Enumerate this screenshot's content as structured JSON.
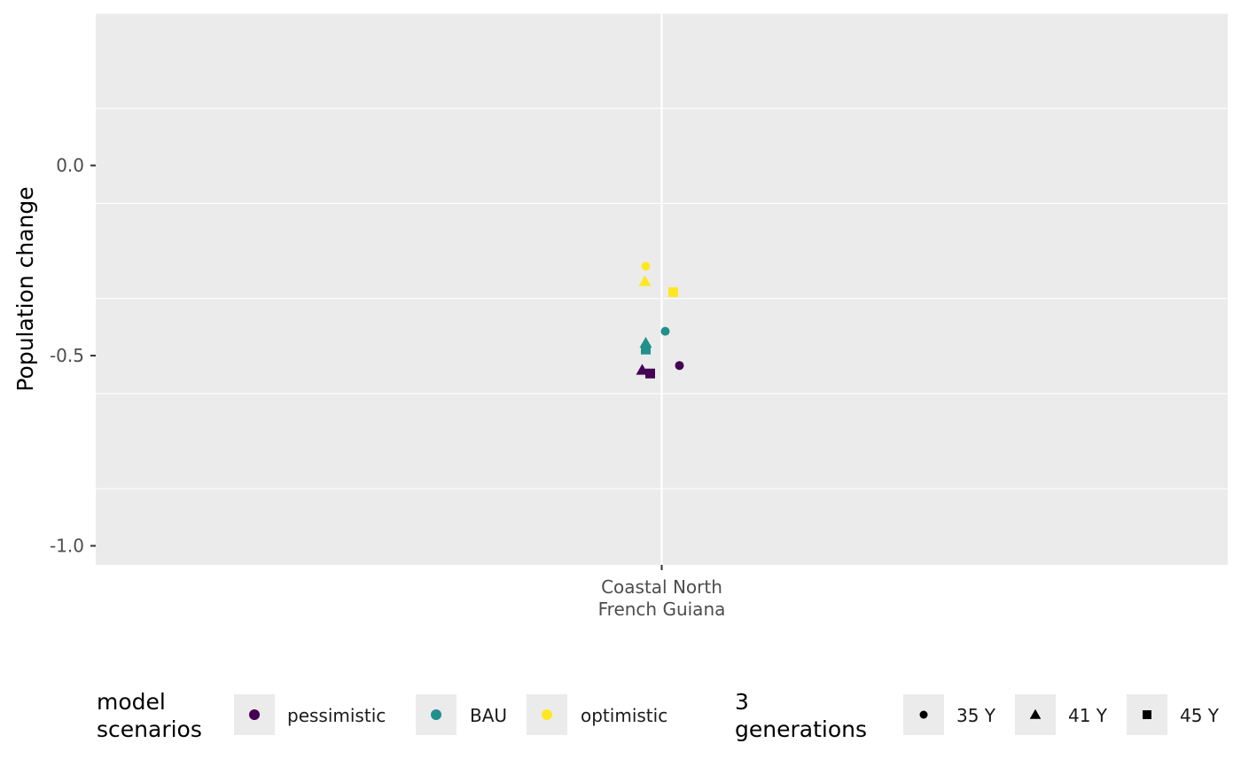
{
  "chart_data": {
    "type": "scatter",
    "title": "",
    "xlabel": "",
    "ylabel": "Population change",
    "categories": [
      "Coastal North\nFrench Guiana"
    ],
    "ylim": [
      -1.05,
      0.4
    ],
    "yticks": [
      0.0,
      -0.5,
      -1.0
    ],
    "ytick_labels": [
      "0.0",
      "-0.5",
      "-1.0"
    ],
    "grid": true,
    "legend_position": "bottom",
    "series": [
      {
        "name": "pessimistic",
        "color": "#440154",
        "points": [
          {
            "category": "Coastal North\nFrench Guiana",
            "y": -0.526,
            "generation": "35 Y"
          },
          {
            "category": "Coastal North\nFrench Guiana",
            "y": -0.538,
            "generation": "41 Y"
          },
          {
            "category": "Coastal North\nFrench Guiana",
            "y": -0.547,
            "generation": "45 Y"
          }
        ]
      },
      {
        "name": "BAU",
        "color": "#21908C",
        "points": [
          {
            "category": "Coastal North\nFrench Guiana",
            "y": -0.436,
            "generation": "35 Y"
          },
          {
            "category": "Coastal North\nFrench Guiana",
            "y": -0.467,
            "generation": "41 Y"
          },
          {
            "category": "Coastal North\nFrench Guiana",
            "y": -0.484,
            "generation": "45 Y"
          }
        ]
      },
      {
        "name": "optimistic",
        "color": "#FDE725",
        "points": [
          {
            "category": "Coastal North\nFrench Guiana",
            "y": -0.265,
            "generation": "35 Y"
          },
          {
            "category": "Coastal North\nFrench Guiana",
            "y": -0.305,
            "generation": "41 Y"
          },
          {
            "category": "Coastal North\nFrench Guiana",
            "y": -0.333,
            "generation": "45 Y"
          }
        ]
      }
    ],
    "legends": [
      {
        "title": "model\nscenarios",
        "kind": "color",
        "entries": [
          "pessimistic",
          "BAU",
          "optimistic"
        ],
        "colors": [
          "#440154",
          "#21908C",
          "#FDE725"
        ]
      },
      {
        "title": "3\ngenerations",
        "kind": "shape",
        "entries": [
          "35 Y",
          "41 Y",
          "45 Y"
        ],
        "shapes": [
          "circle",
          "triangle",
          "square"
        ]
      }
    ]
  }
}
